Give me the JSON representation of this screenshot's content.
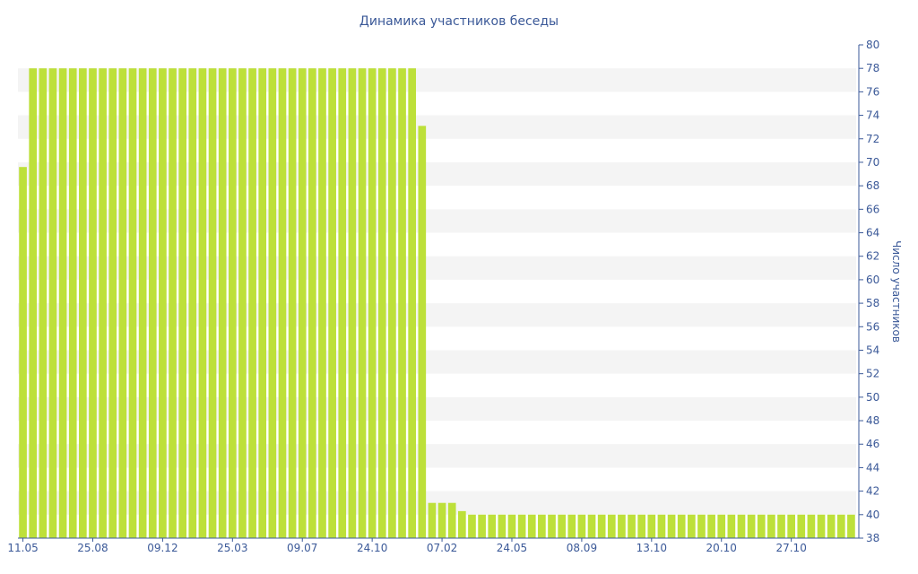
{
  "chart_data": {
    "type": "bar",
    "title": "Динамика участников беседы",
    "xlabel": "",
    "ylabel": "Число участников",
    "ylim": [
      38,
      80
    ],
    "y_ticks": [
      38,
      40,
      42,
      44,
      46,
      48,
      50,
      52,
      54,
      56,
      58,
      60,
      62,
      64,
      66,
      68,
      70,
      72,
      74,
      76,
      78,
      80
    ],
    "x_tick_labels": [
      {
        "index": 0,
        "label": "11.05"
      },
      {
        "index": 7,
        "label": "25.08"
      },
      {
        "index": 14,
        "label": "09.12"
      },
      {
        "index": 21,
        "label": "25.03"
      },
      {
        "index": 28,
        "label": "09.07"
      },
      {
        "index": 35,
        "label": "24.10"
      },
      {
        "index": 42,
        "label": "07.02"
      },
      {
        "index": 49,
        "label": "24.05"
      },
      {
        "index": 56,
        "label": "08.09"
      },
      {
        "index": 63,
        "label": "13.10"
      },
      {
        "index": 70,
        "label": "20.10"
      },
      {
        "index": 77,
        "label": "27.10"
      }
    ],
    "values": [
      69.6,
      78,
      78,
      78,
      78,
      78,
      78,
      78,
      78,
      78,
      78,
      78,
      78,
      78,
      78,
      78,
      78,
      78,
      78,
      78,
      78,
      78,
      78,
      78,
      78,
      78,
      78,
      78,
      78,
      78,
      78,
      78,
      78,
      78,
      78,
      78,
      78,
      78,
      78,
      78,
      73.1,
      41,
      41,
      41,
      40.3,
      40,
      40,
      40,
      40,
      40,
      40,
      40,
      40,
      40,
      40,
      40,
      40,
      40,
      40,
      40,
      40,
      40,
      40,
      40,
      40,
      40,
      40,
      40,
      40,
      40,
      40,
      40,
      40,
      40,
      40,
      40,
      40,
      40,
      40,
      40,
      40,
      40,
      40,
      40
    ],
    "grid": "alternating horizontal bands",
    "bar_color": "#bde03a",
    "band_color": "#f4f4f4",
    "text_color": "#3b5998",
    "axis_position": "right"
  }
}
